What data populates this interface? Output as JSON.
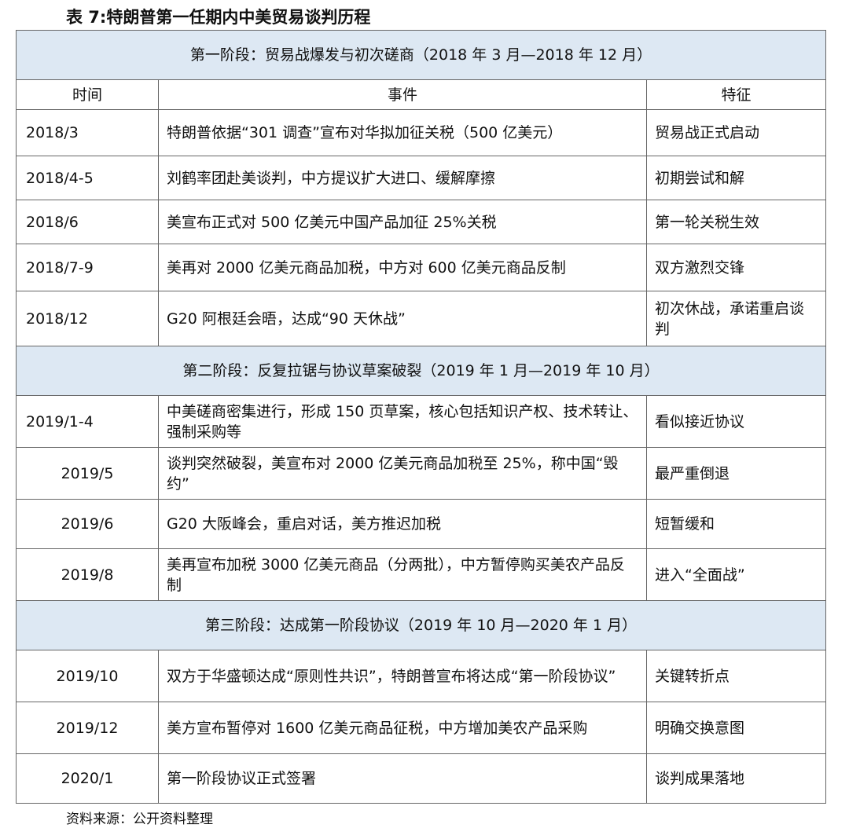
{
  "title": "表 7:特朗普第一任期内中美贸易谈判历程",
  "headers": [
    "时间",
    "事件",
    "特征"
  ],
  "stages": [
    {
      "label": "第一阶段：贸易战爆发与初次磋商（2018 年 3 月—2018 年 12 月）",
      "rows": [
        {
          "time": "2018/3",
          "event": "特朗普依据“301 调查”宣布对华拟加征关税（500 亿美元）",
          "feature": "贸易战正式启动"
        },
        {
          "time": "2018/4-5",
          "event": "刘鹤率团赴美谈判，中方提议扩大进口、缓解摩擦",
          "feature": "初期尝试和解"
        },
        {
          "time": "2018/6",
          "event": "美宣布正式对 500 亿美元中国产品加征 25%关税",
          "feature": "第一轮关税生效"
        },
        {
          "time": "2018/7-9",
          "event": "美再对 2000 亿美元商品加税，中方对 600 亿美元商品反制",
          "feature": "双方激烈交锋"
        },
        {
          "time": "2018/12",
          "event": "G20 阿根廷会晤，达成“90 天休战”",
          "feature": "初次休战，承诺重启谈判"
        }
      ]
    },
    {
      "label": "第二阶段：反复拉锯与协议草案破裂（2019 年 1 月—2019 年 10 月）",
      "rows": [
        {
          "time": "2019/1-4",
          "event": "中美磋商密集进行，形成 150 页草案，核心包括知识产权、技术转让、强制采购等",
          "feature": "看似接近协议"
        },
        {
          "time": "2019/5",
          "event": "谈判突然破裂，美宣布对 2000 亿美元商品加税至 25%，称中国“毁约”",
          "feature": "最严重倒退"
        },
        {
          "time": "2019/6",
          "event": "G20 大阪峰会，重启对话，美方推迟加税",
          "feature": "短暂缓和"
        },
        {
          "time": "2019/8",
          "event": "美再宣布加税 3000 亿美元商品（分两批），中方暂停购买美农产品反制",
          "feature": "进入“全面战”"
        }
      ]
    },
    {
      "label": "第三阶段：达成第一阶段协议（2019 年 10 月—2020 年 1 月）",
      "rows": [
        {
          "time": "2019/10",
          "event": "双方于华盛顿达成“原则性共识”，特朗普宣布将达成“第一阶段协议”",
          "feature": "关键转折点"
        },
        {
          "time": "2019/12",
          "event": "美方宣布暂停对 1600 亿美元商品征税，中方增加美农产品采购",
          "feature": "明确交换意图"
        },
        {
          "time": "2020/1",
          "event": "第一阶段协议正式签署",
          "feature": "谈判成果落地"
        }
      ]
    }
  ],
  "source": "资料来源：公开资料整理"
}
